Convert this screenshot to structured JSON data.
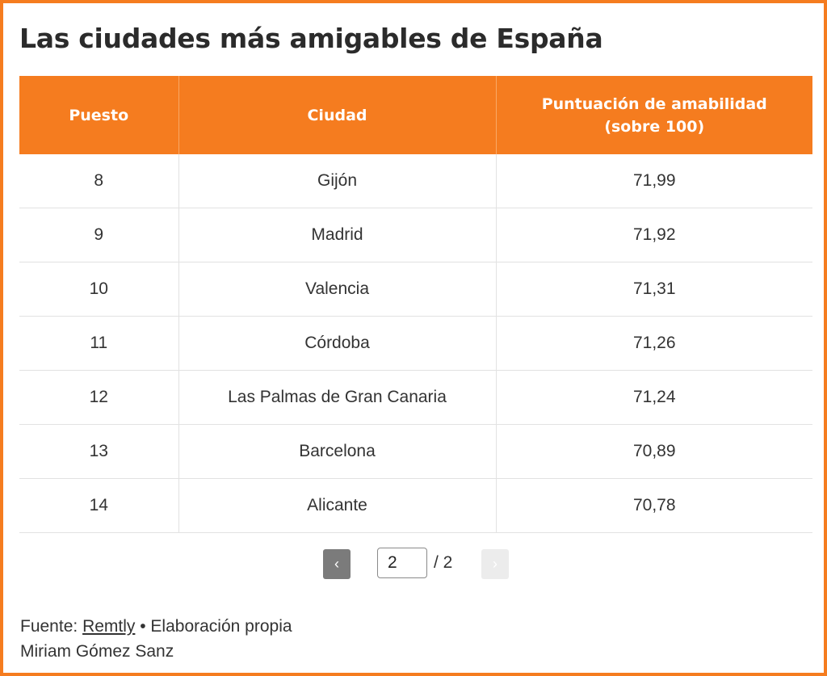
{
  "title": "Las ciudades más amigables de España",
  "chart_data": {
    "type": "table",
    "columns": [
      "Puesto",
      "Ciudad",
      "Puntuación de amabilidad (sobre 100)"
    ],
    "rows": [
      [
        "8",
        "Gijón",
        "71,99"
      ],
      [
        "9",
        "Madrid",
        "71,92"
      ],
      [
        "10",
        "Valencia",
        "71,31"
      ],
      [
        "11",
        "Córdoba",
        "71,26"
      ],
      [
        "12",
        "Las Palmas de Gran Canaria",
        "71,24"
      ],
      [
        "13",
        "Barcelona",
        "70,89"
      ],
      [
        "14",
        "Alicante",
        "70,78"
      ]
    ]
  },
  "header": {
    "col_rank": "Puesto",
    "col_city": "Ciudad",
    "col_score_line1": "Puntuación de amabilidad",
    "col_score_line2": "(sobre 100)"
  },
  "pagination": {
    "prev_label": "‹",
    "next_label": "›",
    "current_page": "2",
    "total_label": "/ 2"
  },
  "footer": {
    "source_prefix": "Fuente: ",
    "source_link": "Remtly",
    "source_suffix": " • Elaboración propia",
    "author": "Miriam Gómez Sanz"
  },
  "colors": {
    "accent": "#f57c1f",
    "header_text": "#ffffff",
    "prev_button": "#7b7b7b",
    "next_button_disabled": "#ececec"
  }
}
